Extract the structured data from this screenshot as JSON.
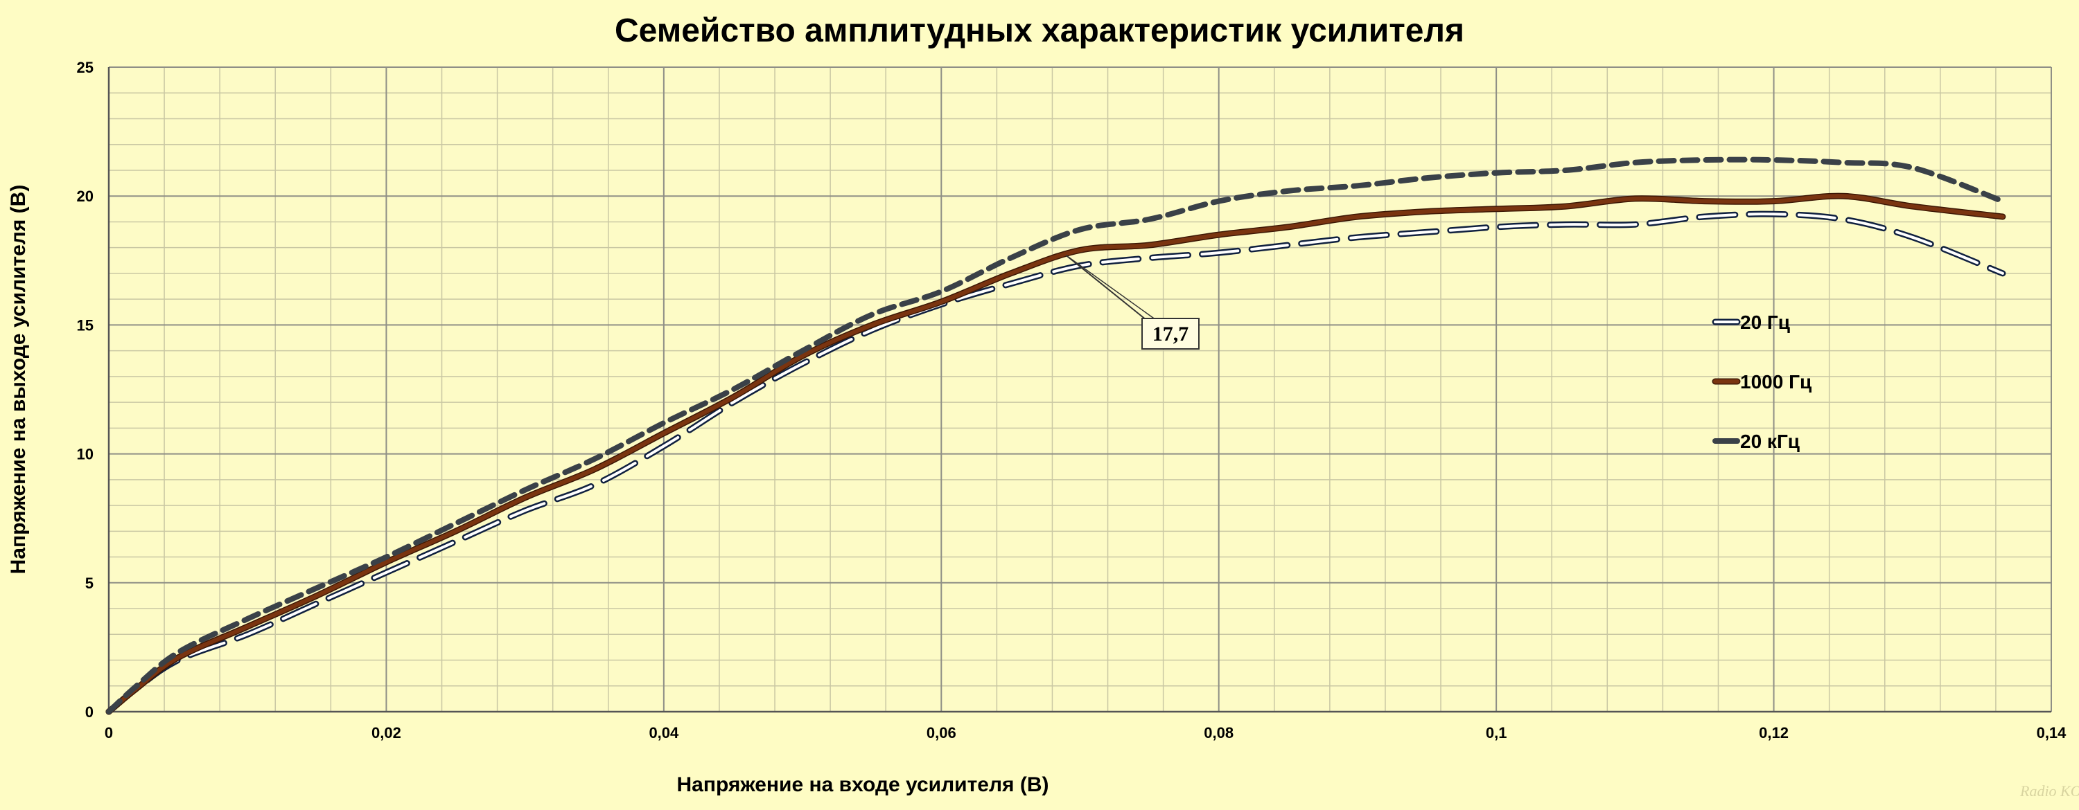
{
  "chart_data": {
    "type": "line",
    "title": "Семейство амплитудных характеристик усилителя",
    "xlabel": "Напряжение на входе усилителя (В)",
    "ylabel": "Напряжение на выходе усилителя (В)",
    "xlim": [
      0,
      0.14
    ],
    "ylim": [
      0,
      25
    ],
    "x_ticks": [
      0,
      0.02,
      0.04,
      0.06,
      0.08,
      0.1,
      0.12,
      0.14
    ],
    "x_tick_labels": [
      "0",
      "0,02",
      "0,04",
      "0,06",
      "0,08",
      "0,1",
      "0,12",
      "0,14"
    ],
    "y_ticks": [
      0,
      5,
      10,
      15,
      20,
      25
    ],
    "y_tick_labels": [
      "0",
      "5",
      "10",
      "15",
      "20",
      "25"
    ],
    "grid": true,
    "legend_position": "right",
    "series": [
      {
        "name": "20 Гц",
        "color": "#1f3a7a",
        "style": "long-dash",
        "x": [
          0,
          0.002,
          0.005,
          0.01,
          0.015,
          0.02,
          0.025,
          0.03,
          0.035,
          0.04,
          0.045,
          0.05,
          0.055,
          0.06,
          0.065,
          0.07,
          0.075,
          0.08,
          0.085,
          0.09,
          0.095,
          0.1,
          0.105,
          0.11,
          0.115,
          0.12,
          0.125,
          0.13,
          0.1365
        ],
        "y": [
          0,
          0.9,
          2.0,
          3.0,
          4.2,
          5.4,
          6.6,
          7.8,
          8.8,
          10.3,
          12.0,
          13.5,
          14.8,
          15.8,
          16.6,
          17.3,
          17.6,
          17.8,
          18.1,
          18.4,
          18.6,
          18.8,
          18.9,
          18.9,
          19.2,
          19.3,
          19.1,
          18.4,
          17.0
        ]
      },
      {
        "name": "1000 Гц",
        "color": "#7a3410",
        "style": "solid",
        "x": [
          0,
          0.002,
          0.005,
          0.01,
          0.015,
          0.02,
          0.025,
          0.03,
          0.035,
          0.04,
          0.045,
          0.05,
          0.055,
          0.06,
          0.065,
          0.07,
          0.075,
          0.08,
          0.085,
          0.09,
          0.095,
          0.1,
          0.105,
          0.11,
          0.115,
          0.12,
          0.125,
          0.13,
          0.1365
        ],
        "y": [
          0,
          0.9,
          2.1,
          3.3,
          4.5,
          5.8,
          7.0,
          8.3,
          9.4,
          10.8,
          12.2,
          13.8,
          15.0,
          15.9,
          17.0,
          17.9,
          18.1,
          18.5,
          18.8,
          19.2,
          19.4,
          19.5,
          19.6,
          19.9,
          19.8,
          19.8,
          20.0,
          19.6,
          19.2
        ]
      },
      {
        "name": "20 кГц",
        "color": "#3a4148",
        "style": "short-dash",
        "x": [
          0,
          0.002,
          0.005,
          0.01,
          0.015,
          0.02,
          0.025,
          0.03,
          0.035,
          0.04,
          0.045,
          0.05,
          0.055,
          0.06,
          0.065,
          0.07,
          0.075,
          0.08,
          0.085,
          0.09,
          0.095,
          0.1,
          0.105,
          0.11,
          0.115,
          0.12,
          0.125,
          0.13,
          0.1365
        ],
        "y": [
          0,
          1.0,
          2.3,
          3.6,
          4.8,
          6.0,
          7.3,
          8.6,
          9.8,
          11.2,
          12.5,
          14.0,
          15.4,
          16.3,
          17.6,
          18.7,
          19.1,
          19.8,
          20.2,
          20.4,
          20.7,
          20.9,
          21.0,
          21.3,
          21.4,
          21.4,
          21.3,
          21.1,
          19.8
        ]
      }
    ],
    "annotations": [
      {
        "text": "17,7",
        "x": 0.069,
        "y": 17.7
      }
    ]
  },
  "watermark": "Radio KOT radiokot.ru"
}
